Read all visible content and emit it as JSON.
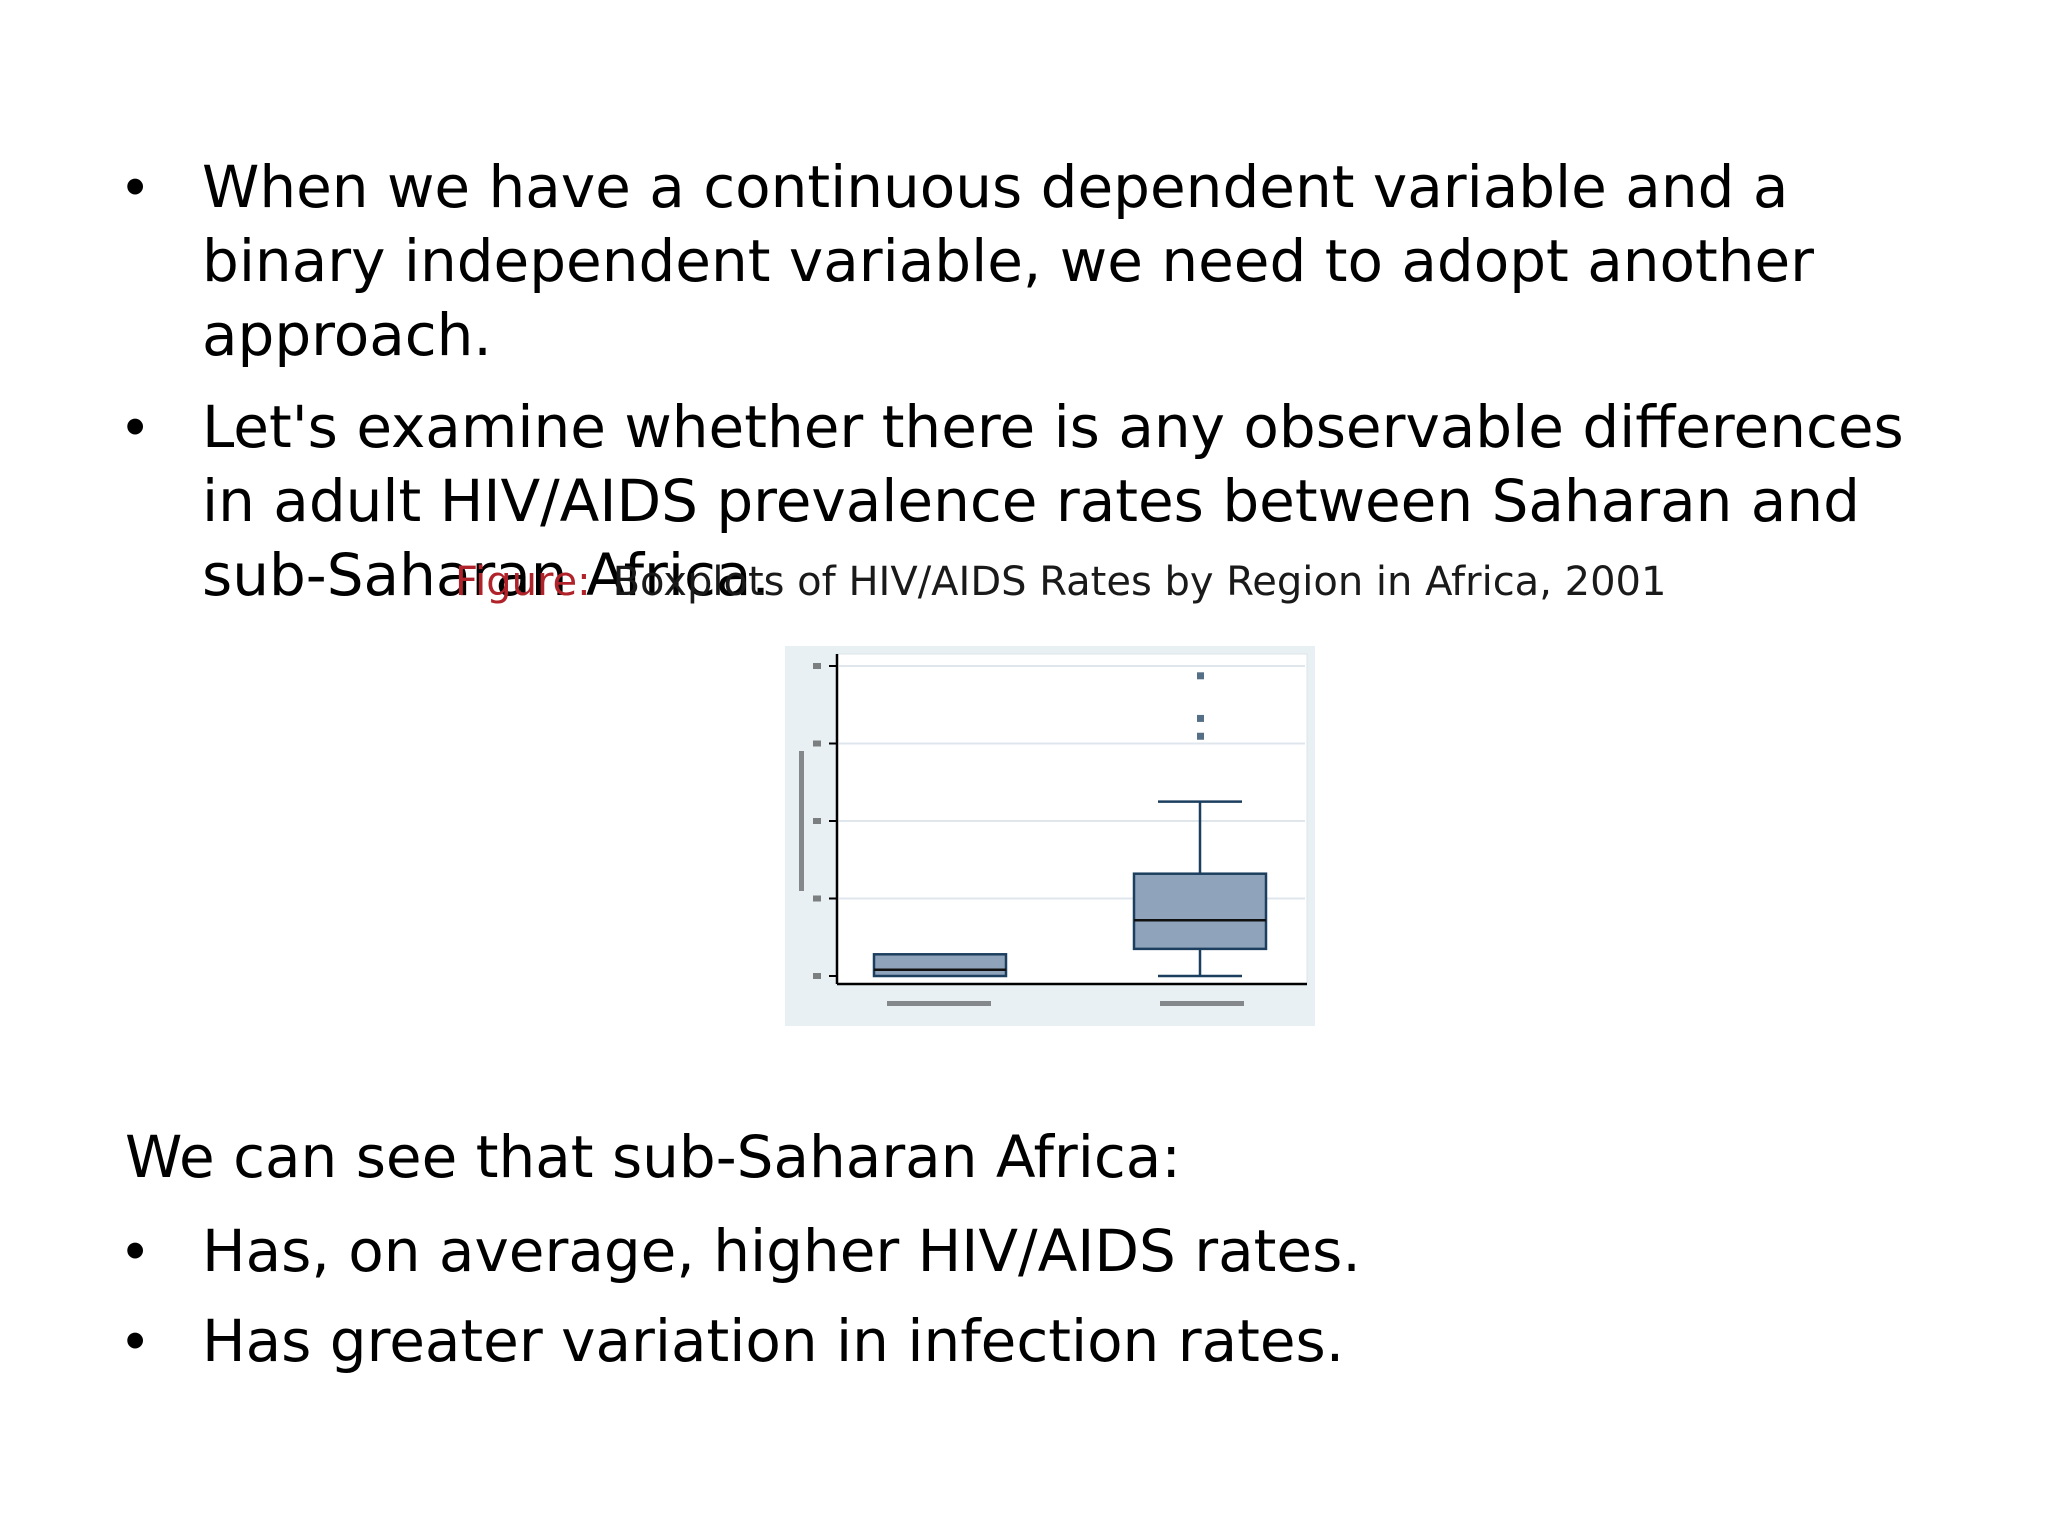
{
  "bullets": [
    "When we have a continuous dependent variable and a binary independent variable, we need to adopt another approach.",
    "Let's examine whether there is any observable differences in adult HIV/AIDS prevalence rates between Saharan and sub-Saharan Africa."
  ],
  "bullet_symbol": "•",
  "figure": {
    "caption_prefix": "Figure:",
    "caption": "Boxplots of HIV/AIDS Rates by Region in Africa, 2001"
  },
  "summary": {
    "heading": "We can see that sub-Saharan Africa:",
    "bullets": [
      "Has, on average, higher HIV/AIDS rates.",
      "Has greater variation in infection rates."
    ]
  },
  "colors": {
    "caption_prefix": "#b0232a",
    "box_fill": "#8fa3ba",
    "box_stroke": "#1c3f5f",
    "plot_background": "#e9f0f3"
  },
  "chart_data": {
    "type": "boxplot",
    "ylim": [
      0,
      40
    ],
    "series": [
      {
        "min": 0,
        "q1": 0,
        "median": 0.8,
        "q3": 2.8,
        "max": 2.8,
        "outliers": []
      },
      {
        "min": 0,
        "q1": 3.5,
        "median": 7.2,
        "q3": 13.2,
        "max": 22.5,
        "outliers": [
          31.0,
          33.3,
          38.8
        ]
      }
    ]
  }
}
